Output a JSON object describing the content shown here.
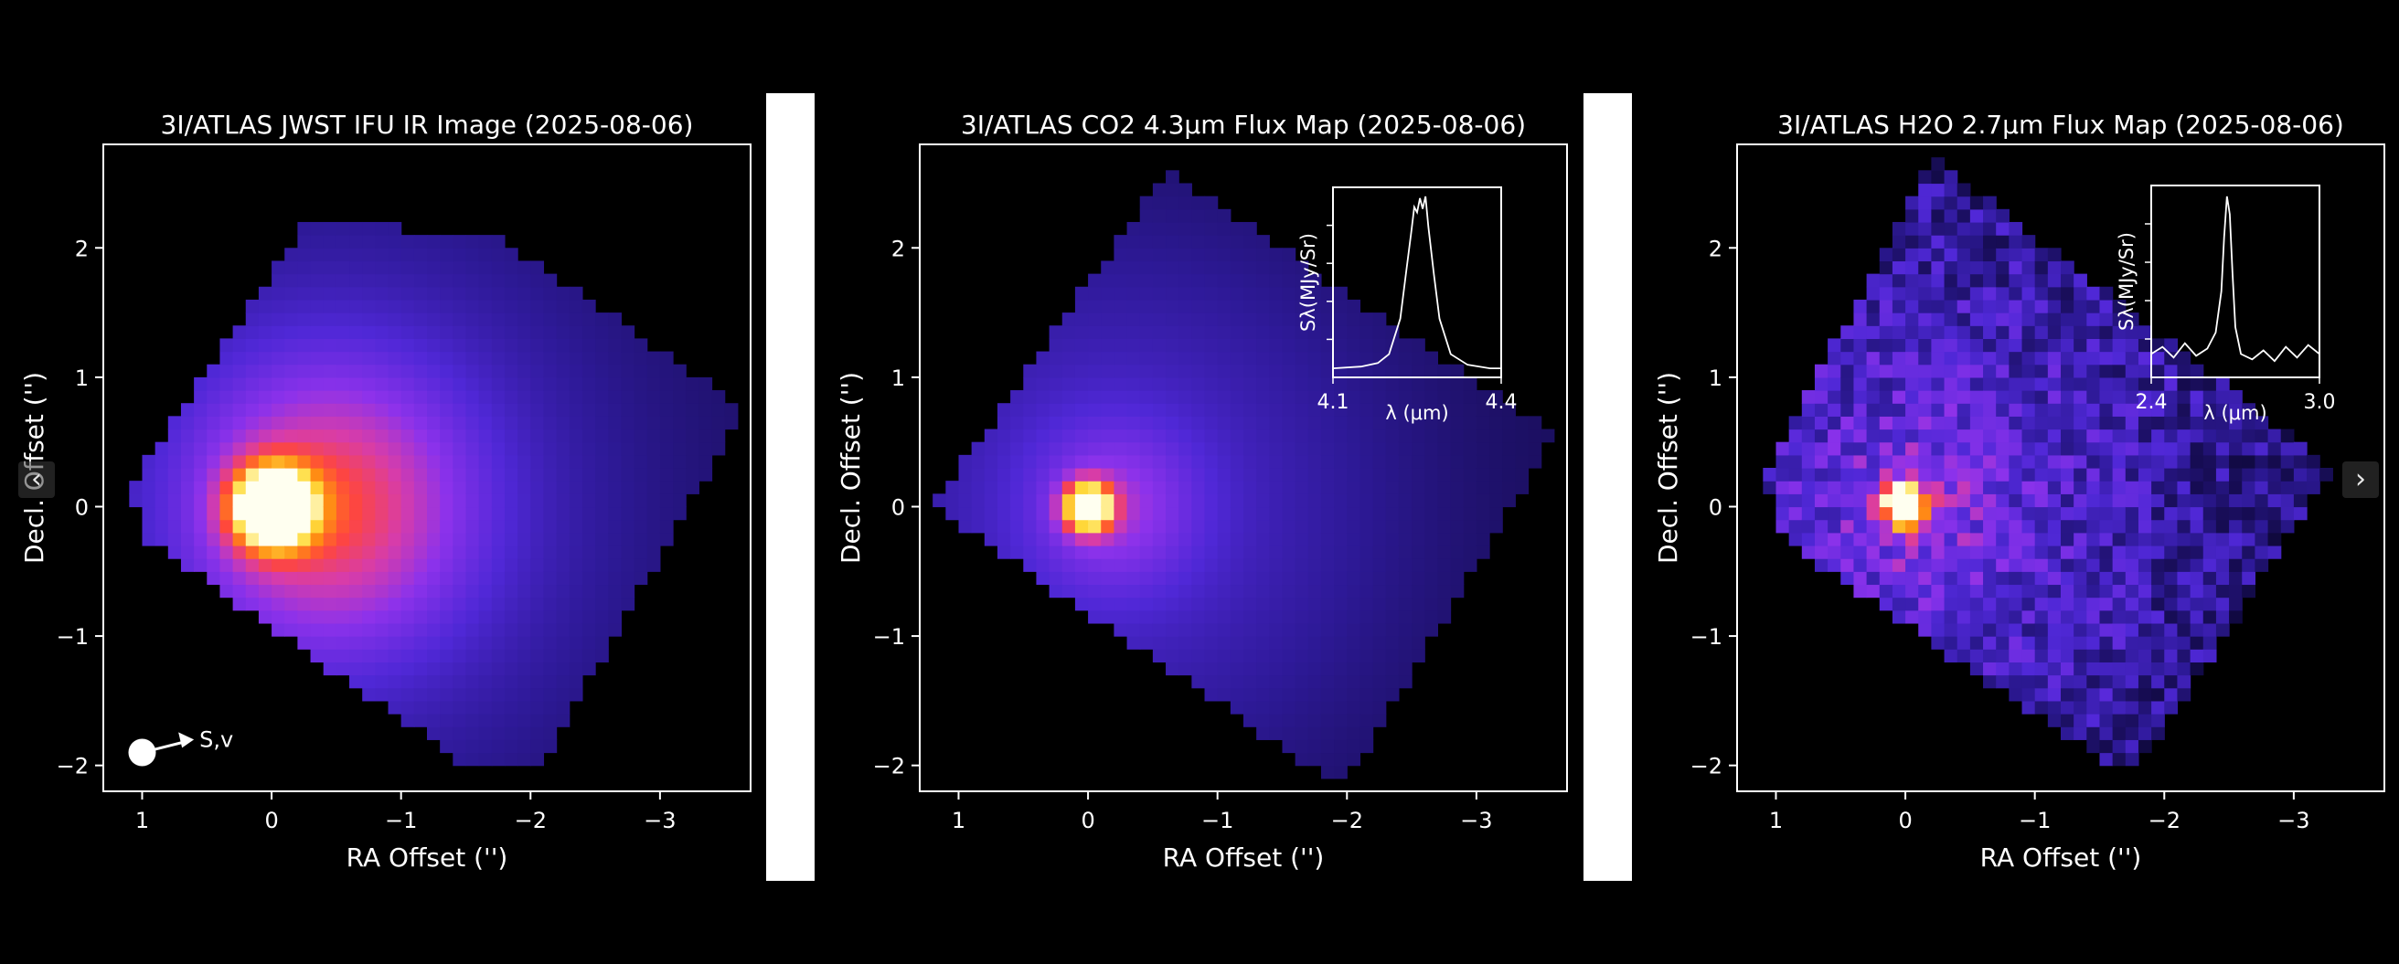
{
  "colors": {
    "background": "#000000",
    "axis": "#ffffff",
    "text": "#ffffff",
    "divider": "#ffffff"
  },
  "colormap": "gnuplot2",
  "navigation": {
    "prev_icon": "‹",
    "next_icon": "›"
  },
  "chart_data": [
    {
      "type": "heatmap",
      "title": "3I/ATLAS JWST IFU IR Image (2025-08-06)",
      "xlabel": "RA Offset ('')",
      "ylabel": "Decl. Offset ('')",
      "xlim": [
        1.3,
        -3.7
      ],
      "ylim": [
        -2.2,
        2.8
      ],
      "xticks": [
        1,
        0,
        -1,
        -2,
        -3
      ],
      "xticklabels": [
        "1",
        "0",
        "−1",
        "−2",
        "−3"
      ],
      "yticks": [
        -2,
        -1,
        0,
        1,
        2
      ],
      "yticklabels": [
        "−2",
        "−1",
        "0",
        "1",
        "2"
      ],
      "field_polygon": [
        [
          1.1,
          0.15
        ],
        [
          -0.3,
          2.25
        ],
        [
          -1.8,
          2.05
        ],
        [
          -3.65,
          0.75
        ],
        [
          -2.1,
          -1.95
        ],
        [
          -1.5,
          -2.0
        ],
        [
          0.95,
          -0.25
        ]
      ],
      "peak": {
        "ra": 0.0,
        "dec": 0.0
      },
      "emission": {
        "core_sigma": 0.22,
        "halo_sigma": 0.75,
        "halo_shift_ra": -0.45,
        "halo_amp": 0.36,
        "floor": 0.16
      },
      "annotation": {
        "label": "S,v",
        "marker_ra": 1.0,
        "marker_dec": -1.9,
        "arrow_to_ra": 0.6,
        "arrow_to_dec": -1.8
      }
    },
    {
      "type": "heatmap",
      "title": "3I/ATLAS CO2 4.3μm Flux Map (2025-08-06)",
      "xlabel": "RA Offset ('')",
      "ylabel": "Decl. Offset ('')",
      "xlim": [
        1.3,
        -3.7
      ],
      "ylim": [
        -2.2,
        2.8
      ],
      "xticks": [
        1,
        0,
        -1,
        -2,
        -3
      ],
      "xticklabels": [
        "1",
        "0",
        "−1",
        "−2",
        "−3"
      ],
      "yticks": [
        -2,
        -1,
        0,
        1,
        2
      ],
      "yticklabels": [
        "−2",
        "−1",
        "0",
        "1",
        "2"
      ],
      "field_polygon": [
        [
          1.2,
          0.0
        ],
        [
          -0.6,
          2.6
        ],
        [
          -3.6,
          0.55
        ],
        [
          -2.0,
          -2.1
        ],
        [
          -1.85,
          -2.1
        ]
      ],
      "peak": {
        "ra": 0.0,
        "dec": 0.0
      },
      "emission": {
        "core_sigma": 0.13,
        "halo_sigma": 0.45,
        "halo_shift_ra": -0.2,
        "halo_amp": 0.2,
        "floor": 0.14
      },
      "inset": {
        "xlabel": "λ (μm)",
        "ylabel": "Sλ(MJy/Sr)",
        "xlim": [
          4.1,
          4.4
        ],
        "xticklabels": [
          "4.1",
          "4.4"
        ],
        "x": [
          4.1,
          4.15,
          4.18,
          4.2,
          4.22,
          4.23,
          4.24,
          4.245,
          4.25,
          4.255,
          4.26,
          4.265,
          4.27,
          4.28,
          4.29,
          4.31,
          4.34,
          4.38,
          4.4
        ],
        "y": [
          0.02,
          0.03,
          0.05,
          0.1,
          0.3,
          0.55,
          0.8,
          0.93,
          0.9,
          0.98,
          0.92,
          0.99,
          0.82,
          0.55,
          0.3,
          0.1,
          0.04,
          0.02,
          0.02
        ]
      }
    },
    {
      "type": "heatmap",
      "title": "3I/ATLAS H2O 2.7μm Flux Map (2025-08-06)",
      "xlabel": "RA Offset ('')",
      "ylabel": "Decl. Offset ('')",
      "xlim": [
        1.3,
        -3.7
      ],
      "ylim": [
        -2.2,
        2.8
      ],
      "xticks": [
        1,
        0,
        -1,
        -2,
        -3
      ],
      "xticklabels": [
        "1",
        "0",
        "−1",
        "−2",
        "−3"
      ],
      "yticks": [
        -2,
        -1,
        0,
        1,
        2
      ],
      "yticklabels": [
        "−2",
        "−1",
        "0",
        "1",
        "2"
      ],
      "field_polygon": [
        [
          1.1,
          0.2
        ],
        [
          -0.2,
          2.7
        ],
        [
          -3.3,
          0.3
        ],
        [
          -1.8,
          -2.0
        ],
        [
          -1.6,
          -2.0
        ],
        [
          0.9,
          -0.3
        ]
      ],
      "peak": {
        "ra": 0.0,
        "dec": 0.0
      },
      "emission": {
        "core_sigma": 0.12,
        "halo_sigma": 0.4,
        "halo_shift_ra": -0.1,
        "halo_amp": 0.15,
        "floor": 0.18,
        "noise": 0.13
      },
      "inset": {
        "xlabel": "λ (μm)",
        "ylabel": "Sλ(MJy/Sr)",
        "xlim": [
          2.4,
          3.0
        ],
        "xticklabels": [
          "2.4",
          "3.0"
        ],
        "x": [
          2.4,
          2.44,
          2.48,
          2.52,
          2.56,
          2.6,
          2.63,
          2.65,
          2.66,
          2.67,
          2.68,
          2.69,
          2.7,
          2.72,
          2.76,
          2.8,
          2.84,
          2.88,
          2.92,
          2.96,
          3.0
        ],
        "y": [
          0.1,
          0.14,
          0.08,
          0.16,
          0.09,
          0.13,
          0.22,
          0.45,
          0.75,
          0.98,
          0.88,
          0.55,
          0.25,
          0.1,
          0.07,
          0.12,
          0.06,
          0.14,
          0.08,
          0.15,
          0.1
        ]
      }
    }
  ]
}
